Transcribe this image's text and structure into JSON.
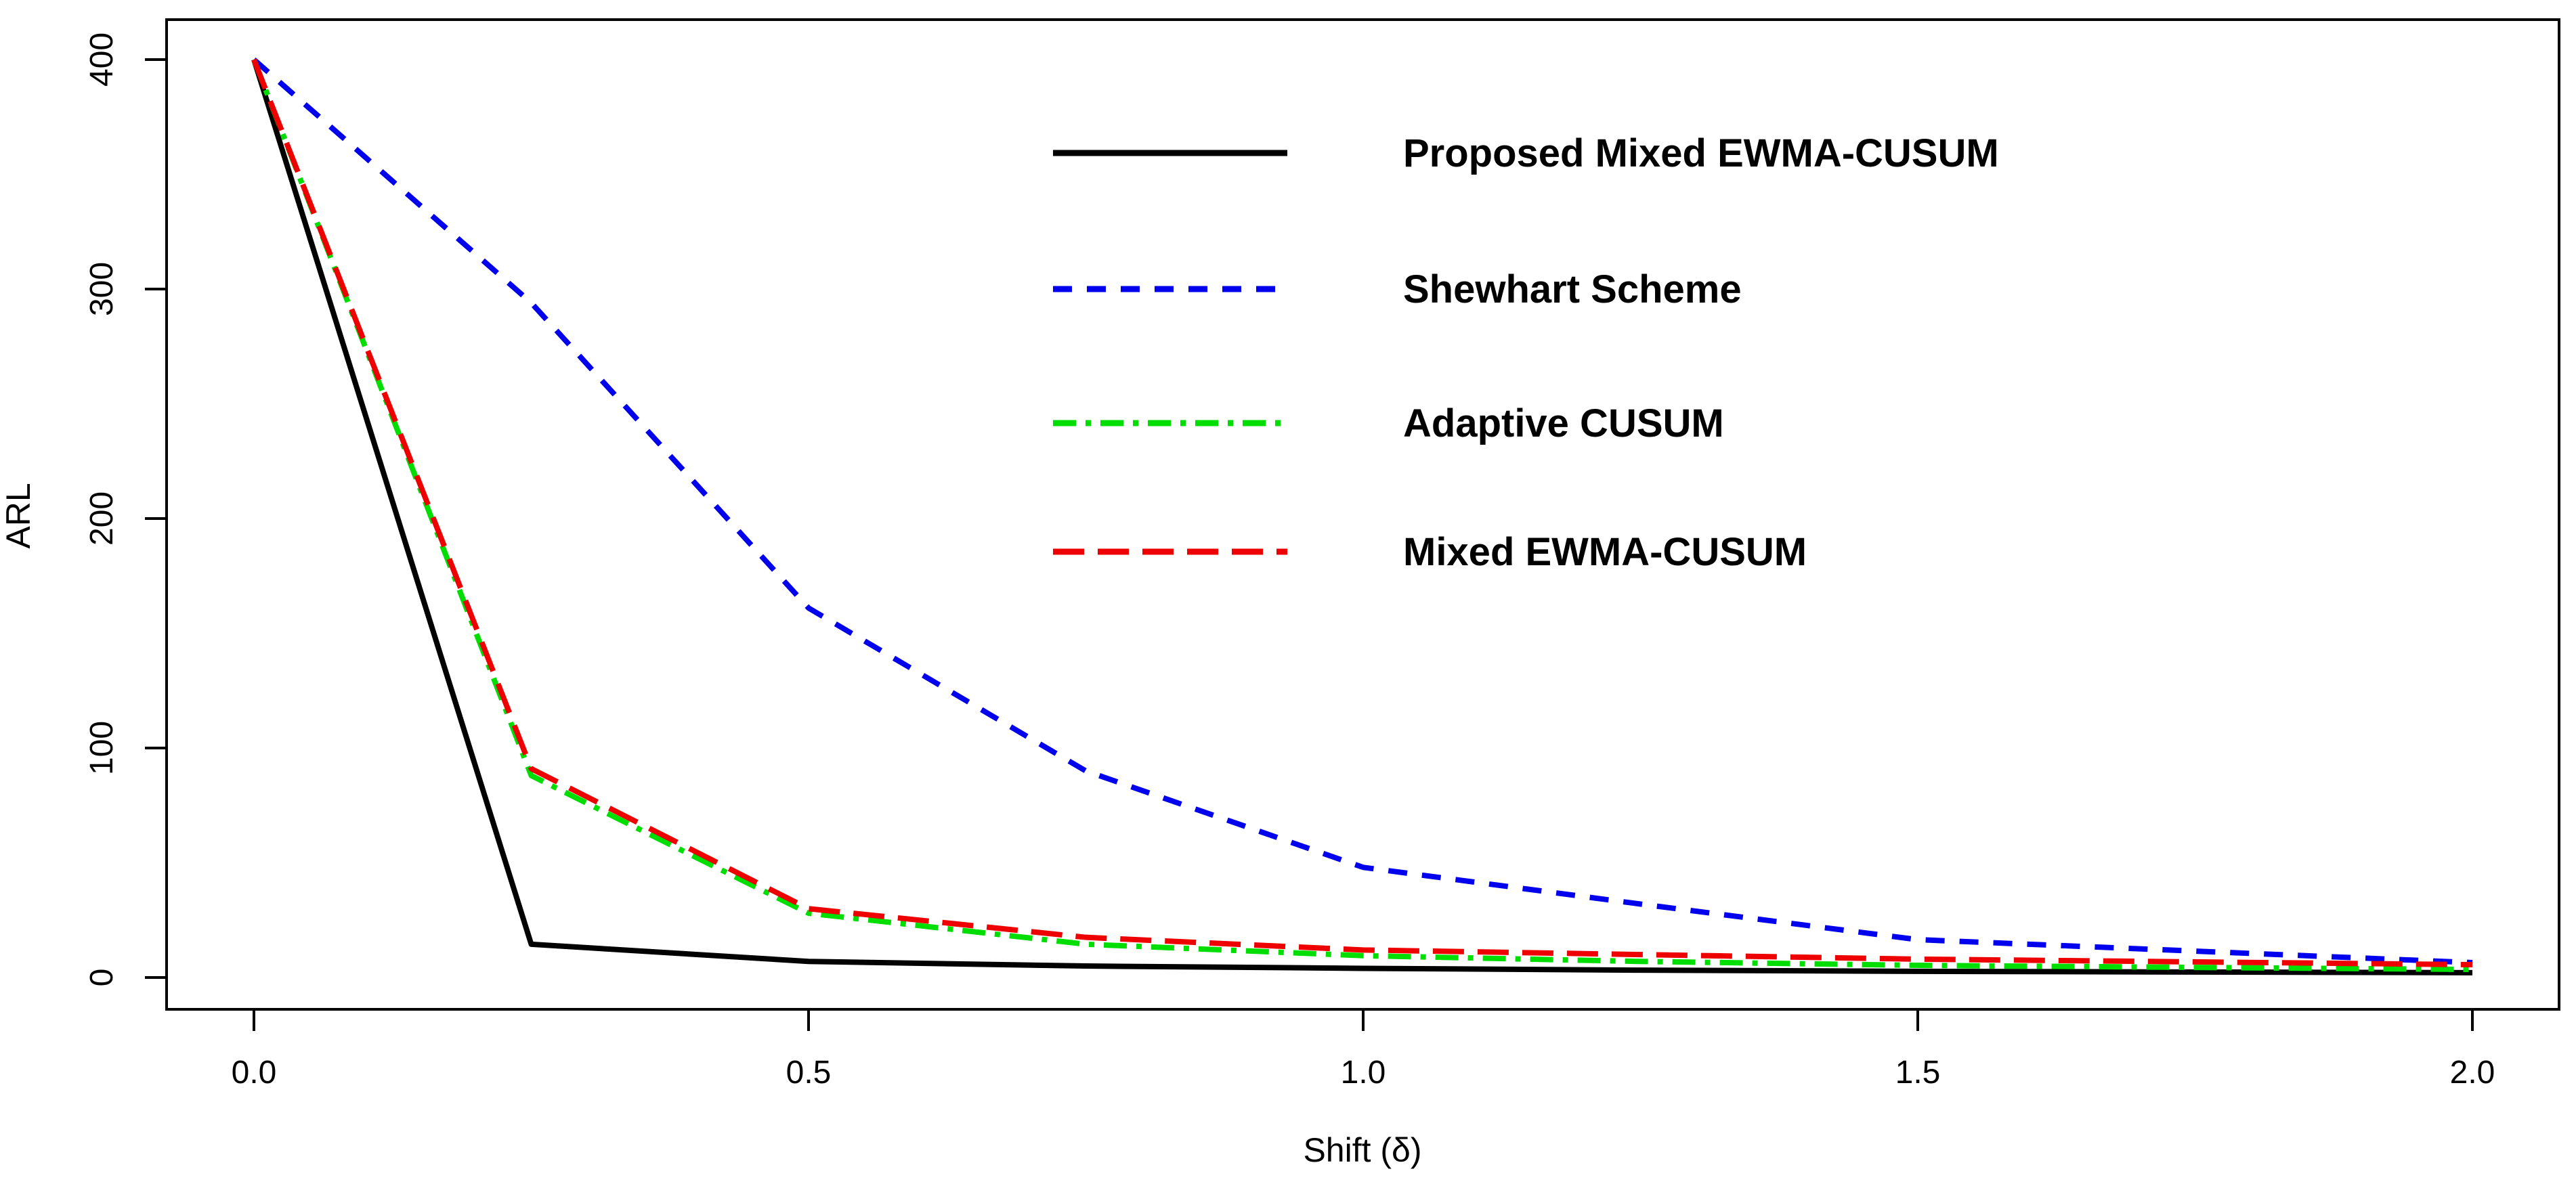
{
  "chart_data": {
    "type": "line",
    "title": "",
    "xlabel": "Shift (δ)",
    "ylabel": "ARL",
    "x": [
      0,
      0.25,
      0.5,
      0.75,
      1.0,
      1.25,
      1.5,
      2.0
    ],
    "xlim": [
      0,
      2.0
    ],
    "ylim": [
      0,
      400
    ],
    "x_tick_values": [
      0.0,
      0.5,
      1.0,
      1.5,
      2.0
    ],
    "x_tick_labels": [
      "0.0",
      "0.5",
      "1.0",
      "1.5",
      "2.0"
    ],
    "y_tick_values": [
      0,
      100,
      200,
      300,
      400
    ],
    "y_tick_labels": [
      "0",
      "100",
      "200",
      "300",
      "400"
    ],
    "grid": false,
    "legend_position": "upper-middle",
    "series": [
      {
        "name": "Proposed Mixed EWMA-CUSUM",
        "color": "#000000",
        "line_style": "solid",
        "values": [
          400,
          14.5,
          7,
          5,
          4,
          3.2,
          2.7,
          2.1
        ]
      },
      {
        "name": "Shewhart Scheme",
        "color": "#0000ee",
        "line_style": "dashed",
        "values": [
          400,
          294,
          161,
          90,
          48,
          32,
          16.5,
          6.5
        ]
      },
      {
        "name": "Adaptive CUSUM",
        "color": "#00dd00",
        "line_style": "dashdot",
        "values": [
          400,
          88,
          28,
          14.5,
          9.5,
          7,
          5.3,
          3.5
        ]
      },
      {
        "name": "Mixed EWMA-CUSUM",
        "color": "#ee0000",
        "line_style": "longdash",
        "values": [
          400,
          91,
          30,
          17.5,
          12,
          10,
          8,
          5.6
        ]
      }
    ]
  }
}
